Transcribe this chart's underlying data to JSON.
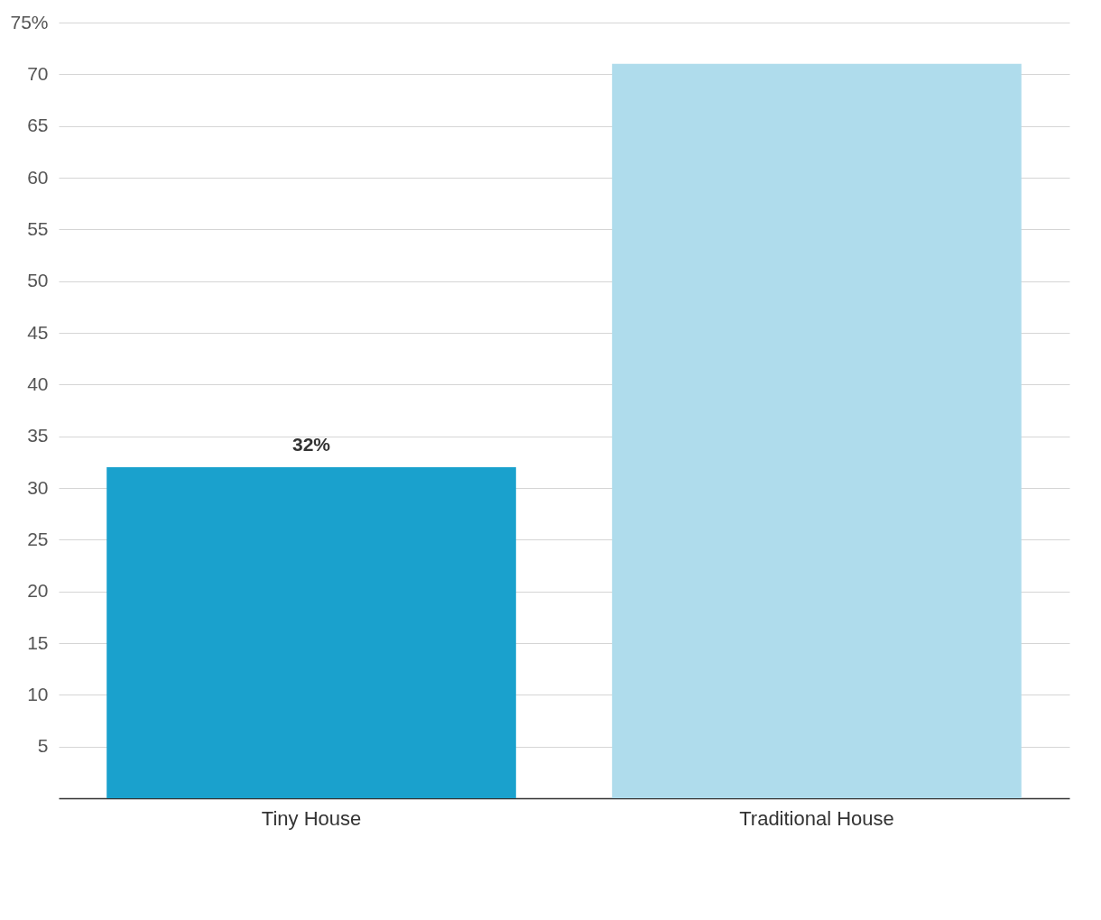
{
  "chart_data": {
    "type": "bar",
    "categories": [
      "Tiny House",
      "Traditional House"
    ],
    "values": [
      32,
      71
    ],
    "colors": [
      "#1aa1cd",
      "#afdcec"
    ],
    "value_labels": [
      "32%",
      null
    ],
    "ylim": [
      0,
      75
    ],
    "yticks": [
      5,
      10,
      15,
      20,
      25,
      30,
      35,
      40,
      45,
      50,
      55,
      60,
      65,
      70,
      {
        "value": 75,
        "label": "75%"
      }
    ],
    "grid": "y"
  }
}
